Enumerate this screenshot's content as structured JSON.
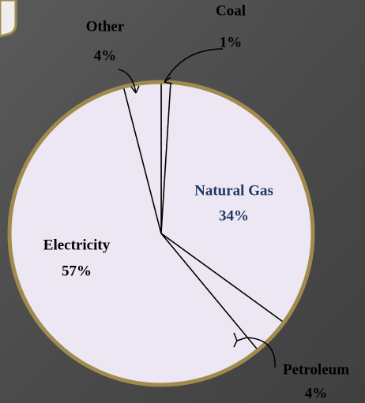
{
  "chart_data": {
    "type": "pie",
    "categories": [
      "Coal",
      "Natural Gas",
      "Petroleum",
      "Electricity",
      "Other"
    ],
    "values": [
      1,
      34,
      4,
      57,
      4
    ],
    "value_labels": [
      "1%",
      "34%",
      "4%",
      "57%",
      "4%"
    ],
    "color": "#ede7f3",
    "label_colors": [
      "#000000",
      "#1f3864",
      "#000000",
      "#000000",
      "#000000"
    ],
    "border_color": "#a08a4e"
  }
}
